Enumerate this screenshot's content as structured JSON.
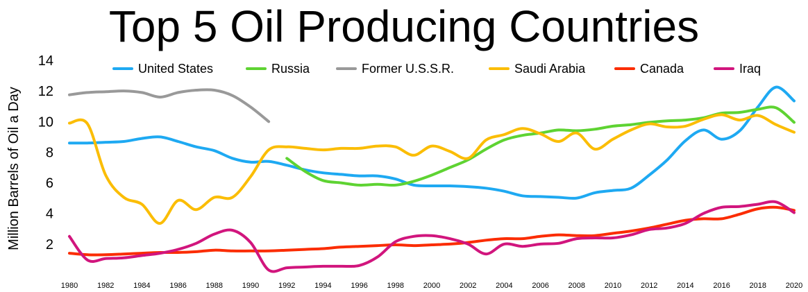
{
  "chart_data": {
    "type": "line",
    "title": "Top 5 Oil Producing Countries",
    "xlabel": "",
    "ylabel": "Million Barrels of Oil a Day",
    "xlim": [
      1980,
      2020
    ],
    "ylim": [
      0,
      14
    ],
    "yticks": [
      2,
      4,
      6,
      8,
      10,
      12,
      14
    ],
    "xticks": [
      1980,
      1982,
      1984,
      1986,
      1988,
      1990,
      1992,
      1994,
      1996,
      1998,
      2000,
      2002,
      2004,
      2006,
      2008,
      2010,
      2012,
      2014,
      2016,
      2018,
      2020
    ],
    "grid": false,
    "legend_position": "top",
    "series": [
      {
        "name": "United States",
        "color": "#1ea9f2",
        "x": [
          1980,
          1981,
          1982,
          1983,
          1984,
          1985,
          1986,
          1987,
          1988,
          1989,
          1990,
          1991,
          1992,
          1993,
          1994,
          1995,
          1996,
          1997,
          1998,
          1999,
          2000,
          2001,
          2002,
          2003,
          2004,
          2005,
          2006,
          2007,
          2008,
          2009,
          2010,
          2011,
          2012,
          2013,
          2014,
          2015,
          2016,
          2017,
          2018,
          2019,
          2020
        ],
        "values": [
          8.6,
          8.6,
          8.65,
          8.7,
          8.9,
          9.0,
          8.7,
          8.35,
          8.1,
          7.6,
          7.35,
          7.4,
          7.15,
          6.85,
          6.65,
          6.55,
          6.45,
          6.45,
          6.25,
          5.85,
          5.8,
          5.8,
          5.75,
          5.65,
          5.45,
          5.15,
          5.1,
          5.05,
          5.0,
          5.35,
          5.5,
          5.65,
          6.5,
          7.5,
          8.75,
          9.45,
          8.85,
          9.4,
          10.95,
          12.25,
          11.35
        ]
      },
      {
        "name": "Russia",
        "color": "#5ed332",
        "x": [
          1992,
          1993,
          1994,
          1995,
          1996,
          1997,
          1998,
          1999,
          2000,
          2001,
          2002,
          2003,
          2004,
          2005,
          2006,
          2007,
          2008,
          2009,
          2010,
          2011,
          2012,
          2013,
          2014,
          2015,
          2016,
          2017,
          2018,
          2019,
          2020
        ],
        "values": [
          7.6,
          6.75,
          6.15,
          6.0,
          5.85,
          5.9,
          5.85,
          6.1,
          6.5,
          7.0,
          7.5,
          8.2,
          8.8,
          9.1,
          9.25,
          9.45,
          9.4,
          9.5,
          9.7,
          9.8,
          9.95,
          10.05,
          10.1,
          10.25,
          10.55,
          10.6,
          10.8,
          10.9,
          9.95
        ]
      },
      {
        "name": "Former U.S.S.R.",
        "color": "#999999",
        "x": [
          1980,
          1981,
          1982,
          1983,
          1984,
          1985,
          1986,
          1987,
          1988,
          1989,
          1990,
          1991
        ],
        "values": [
          11.75,
          11.9,
          11.95,
          12.0,
          11.9,
          11.6,
          11.9,
          12.05,
          12.05,
          11.7,
          10.95,
          10.0
        ]
      },
      {
        "name": "Saudi Arabia",
        "color": "#fbbd05",
        "x": [
          1980,
          1981,
          1982,
          1983,
          1984,
          1985,
          1986,
          1987,
          1988,
          1989,
          1990,
          1991,
          1992,
          1993,
          1994,
          1995,
          1996,
          1997,
          1998,
          1999,
          2000,
          2001,
          2002,
          2003,
          2004,
          2005,
          2006,
          2007,
          2008,
          2009,
          2010,
          2011,
          2012,
          2013,
          2014,
          2015,
          2016,
          2017,
          2018,
          2019,
          2020
        ],
        "values": [
          9.9,
          9.85,
          6.5,
          5.05,
          4.6,
          3.35,
          4.85,
          4.25,
          5.05,
          5.05,
          6.4,
          8.15,
          8.35,
          8.25,
          8.15,
          8.25,
          8.25,
          8.4,
          8.35,
          7.8,
          8.4,
          8.05,
          7.6,
          8.8,
          9.15,
          9.55,
          9.2,
          8.7,
          9.25,
          8.2,
          8.85,
          9.45,
          9.85,
          9.65,
          9.7,
          10.15,
          10.45,
          10.1,
          10.4,
          9.8,
          9.3
        ]
      },
      {
        "name": "Canada",
        "color": "#fb2c00",
        "x": [
          1980,
          1981,
          1982,
          1983,
          1984,
          1985,
          1986,
          1987,
          1988,
          1989,
          1990,
          1991,
          1992,
          1993,
          1994,
          1995,
          1996,
          1997,
          1998,
          1999,
          2000,
          2001,
          2002,
          2003,
          2004,
          2005,
          2006,
          2007,
          2008,
          2009,
          2010,
          2011,
          2012,
          2013,
          2014,
          2015,
          2016,
          2017,
          2018,
          2019,
          2020
        ],
        "values": [
          1.4,
          1.3,
          1.3,
          1.35,
          1.4,
          1.45,
          1.45,
          1.5,
          1.6,
          1.55,
          1.55,
          1.55,
          1.6,
          1.65,
          1.7,
          1.8,
          1.85,
          1.9,
          1.95,
          1.9,
          1.95,
          2.0,
          2.1,
          2.25,
          2.35,
          2.35,
          2.5,
          2.6,
          2.55,
          2.55,
          2.7,
          2.85,
          3.05,
          3.3,
          3.55,
          3.65,
          3.65,
          3.95,
          4.3,
          4.4,
          4.2
        ]
      },
      {
        "name": "Iraq",
        "color": "#d1157d",
        "x": [
          1980,
          1981,
          1982,
          1983,
          1984,
          1985,
          1986,
          1987,
          1988,
          1989,
          1990,
          1991,
          1992,
          1993,
          1994,
          1995,
          1996,
          1997,
          1998,
          1999,
          2000,
          2001,
          2002,
          2003,
          2004,
          2005,
          2006,
          2007,
          2008,
          2009,
          2010,
          2011,
          2012,
          2013,
          2014,
          2015,
          2016,
          2017,
          2018,
          2019,
          2020
        ],
        "values": [
          2.5,
          0.95,
          1.05,
          1.1,
          1.25,
          1.4,
          1.65,
          2.05,
          2.65,
          2.9,
          2.1,
          0.3,
          0.45,
          0.5,
          0.55,
          0.55,
          0.6,
          1.15,
          2.15,
          2.5,
          2.55,
          2.35,
          2.0,
          1.35,
          2.0,
          1.85,
          2.0,
          2.05,
          2.35,
          2.4,
          2.4,
          2.6,
          2.95,
          3.05,
          3.35,
          4.0,
          4.4,
          4.45,
          4.6,
          4.75,
          4.05
        ]
      }
    ]
  }
}
